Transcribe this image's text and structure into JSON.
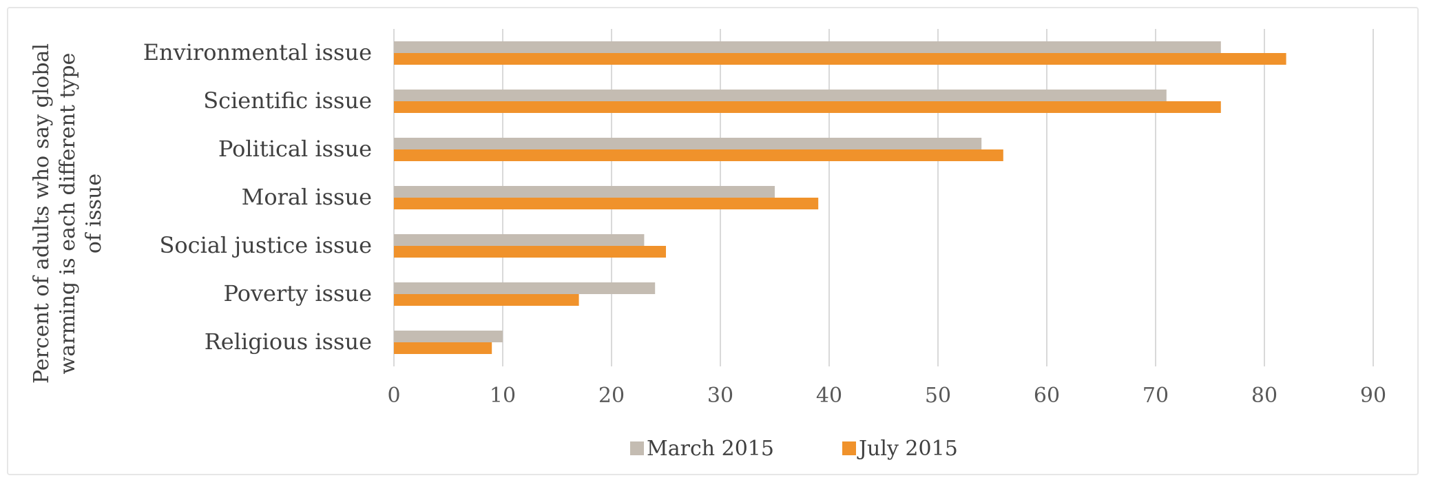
{
  "chart_data": {
    "type": "bar",
    "orientation": "horizontal",
    "categories": [
      "Environmental issue",
      "Scientific issue",
      "Political issue",
      "Moral issue",
      "Social justice issue",
      "Poverty issue",
      "Religious issue"
    ],
    "series": [
      {
        "name": "March 2015",
        "values": [
          76,
          71,
          54,
          35,
          23,
          24,
          10
        ],
        "color": "#c4bcb2"
      },
      {
        "name": "July 2015",
        "values": [
          82,
          76,
          56,
          39,
          25,
          17,
          9
        ],
        "color": "#f0922b"
      }
    ],
    "title": "",
    "xlabel": "",
    "ylabel": "Percent of adults who say global warming is each different type of issue",
    "ylabel_lines": [
      "Percent of adults who say global",
      "warming is each different type",
      "of issue"
    ],
    "xlim": [
      0,
      90
    ],
    "xticks": [
      0,
      10,
      20,
      30,
      40,
      50,
      60,
      70,
      80,
      90
    ],
    "grid": "vertical",
    "legend": "bottom"
  }
}
